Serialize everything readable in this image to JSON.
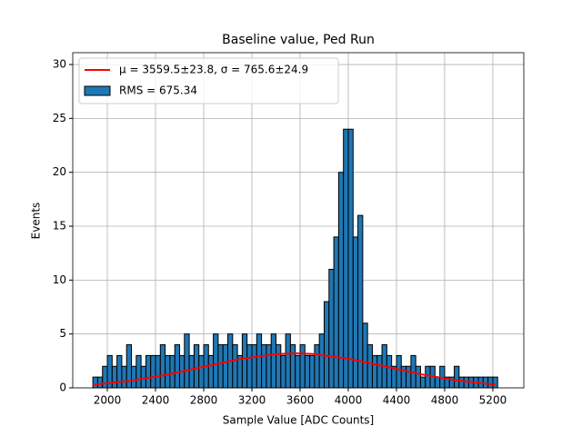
{
  "chart_data": {
    "type": "histogram",
    "title": "Baseline value, Ped Run",
    "xlabel": "Sample Value [ADC Counts]",
    "ylabel": "Events",
    "bins": [
      1880,
      1920,
      1960,
      2000,
      2040,
      2080,
      2120,
      2160,
      2200,
      2240,
      2280,
      2320,
      2360,
      2400,
      2440,
      2480,
      2520,
      2560,
      2600,
      2640,
      2680,
      2720,
      2760,
      2800,
      2840,
      2880,
      2920,
      2960,
      3000,
      3040,
      3080,
      3120,
      3160,
      3200,
      3240,
      3280,
      3320,
      3360,
      3400,
      3440,
      3480,
      3520,
      3560,
      3600,
      3640,
      3680,
      3720,
      3760,
      3800,
      3840,
      3880,
      3920,
      3960,
      4000,
      4040,
      4080,
      4120,
      4160,
      4200,
      4240,
      4280,
      4320,
      4360,
      4400,
      4440,
      4480,
      4520,
      4560,
      4600,
      4640,
      4680,
      4720,
      4760,
      4800,
      4840,
      4880,
      4920,
      4960,
      5000,
      5040,
      5080,
      5120,
      5160,
      5200,
      5240
    ],
    "counts": [
      1,
      1,
      2,
      3,
      2,
      3,
      2,
      4,
      2,
      3,
      2,
      3,
      3,
      3,
      4,
      3,
      3,
      4,
      3,
      5,
      3,
      4,
      3,
      4,
      3,
      5,
      4,
      4,
      5,
      4,
      3,
      5,
      4,
      4,
      5,
      4,
      4,
      5,
      4,
      3,
      5,
      4,
      3,
      4,
      3,
      3,
      4,
      5,
      8,
      11,
      14,
      20,
      24,
      24,
      14,
      16,
      6,
      4,
      3,
      3,
      4,
      3,
      2,
      3,
      2,
      2,
      3,
      2,
      1,
      2,
      2,
      1,
      2,
      1,
      1,
      2,
      1,
      1,
      1,
      1,
      1,
      1,
      1,
      1
    ],
    "hist_name": "RMS = 675.34",
    "color": "#1f77b4",
    "edgecolor": "#000000",
    "fit": {
      "name": "μ = 3559.5±23.8, σ = 765.6±24.9",
      "color": "#ff0000",
      "x": [
        1880,
        2200,
        2500,
        2800,
        3100,
        3400,
        3560,
        3700,
        4000,
        4300,
        4600,
        4900,
        5220
      ],
      "values": [
        0.29,
        0.66,
        1.23,
        1.96,
        2.67,
        3.13,
        3.2,
        3.15,
        2.71,
        2.0,
        1.27,
        0.69,
        0.3
      ]
    },
    "xlim": [
      1713,
      5457
    ],
    "ylim": [
      0,
      31.1
    ],
    "xticks": [
      2000,
      2400,
      2800,
      3200,
      3600,
      4000,
      4400,
      4800,
      5200
    ],
    "yticks": [
      0,
      5,
      10,
      15,
      20,
      25,
      30
    ],
    "grid": true,
    "legend": "upper left"
  }
}
